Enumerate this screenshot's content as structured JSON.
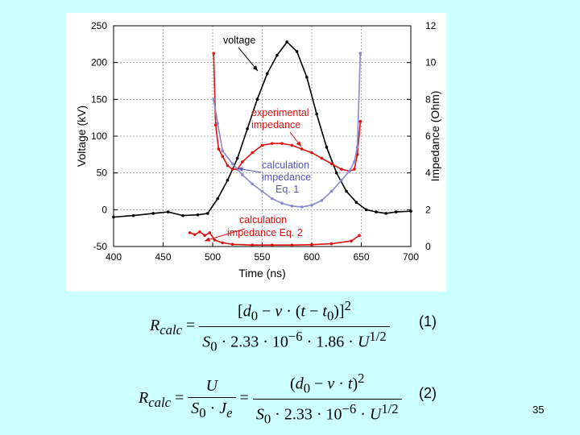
{
  "chart_data": {
    "type": "line",
    "title": "",
    "xlabel": "Time (ns)",
    "ylabel": "Voltage (kV)",
    "ylabel_right": "Impedance (Ohm)",
    "xlim": [
      400,
      700
    ],
    "ylim": [
      -50,
      250
    ],
    "ylim_right": [
      0,
      12
    ],
    "x_ticks": [
      400,
      450,
      500,
      550,
      600,
      650,
      700
    ],
    "y_ticks": [
      -50,
      0,
      50,
      100,
      150,
      200,
      250
    ],
    "y_ticks_right": [
      0,
      2,
      4,
      6,
      8,
      10,
      12
    ],
    "grid": true,
    "series": [
      {
        "name": "voltage",
        "axis": "left",
        "color": "#000000",
        "x": [
          400,
          420,
          440,
          455,
          470,
          485,
          495,
          505,
          515,
          525,
          535,
          545,
          555,
          565,
          575,
          585,
          595,
          605,
          615,
          625,
          635,
          645,
          655,
          665,
          675,
          685,
          700
        ],
        "y": [
          -10,
          -8,
          -5,
          -3,
          -8,
          -7,
          -5,
          15,
          40,
          70,
          110,
          150,
          185,
          210,
          228,
          215,
          180,
          130,
          85,
          50,
          25,
          10,
          0,
          -3,
          -5,
          -3,
          -2
        ]
      },
      {
        "name": "experimental impedance",
        "axis": "right",
        "color": "#dd1111",
        "x": [
          501,
          503,
          506,
          510,
          515,
          520,
          525,
          530,
          540,
          550,
          560,
          570,
          580,
          590,
          600,
          610,
          620,
          630,
          638,
          643,
          646,
          649
        ],
        "y": [
          10.5,
          6.6,
          5.3,
          4.9,
          4.4,
          4.2,
          4.2,
          4.6,
          5.1,
          5.5,
          5.6,
          5.6,
          5.5,
          5.3,
          5.1,
          4.8,
          4.5,
          4.2,
          4.1,
          4.2,
          5.0,
          6.8
        ]
      },
      {
        "name": "calculation impedance Eq. 1",
        "axis": "right",
        "color": "#8888cc",
        "x": [
          501,
          505,
          510,
          520,
          530,
          540,
          550,
          560,
          570,
          580,
          590,
          600,
          610,
          620,
          630,
          638,
          643,
          646,
          649
        ],
        "y": [
          8.0,
          6.7,
          5.2,
          4.5,
          3.9,
          3.4,
          3.0,
          2.6,
          2.35,
          2.2,
          2.15,
          2.25,
          2.5,
          3.0,
          3.6,
          4.1,
          4.6,
          5.4,
          10.5
        ]
      },
      {
        "name": "calculation impedance Eq. 2",
        "axis": "right",
        "color": "#dd1111",
        "x": [
          477,
          482,
          487,
          492,
          497,
          502,
          510,
          520,
          540,
          560,
          580,
          600,
          620,
          640,
          648
        ],
        "y": [
          0.75,
          0.65,
          0.8,
          0.6,
          0.75,
          0.35,
          0.2,
          0.12,
          0.08,
          0.08,
          0.08,
          0.1,
          0.15,
          0.3,
          0.6
        ]
      }
    ],
    "annotations": [
      {
        "text": "voltage",
        "color": "#000000"
      },
      {
        "text": "experimental",
        "color": "#dd1111"
      },
      {
        "text": "impedance",
        "color": "#dd1111"
      },
      {
        "text": "calculation",
        "color": "#5555bb"
      },
      {
        "text": "impedance",
        "color": "#5555bb"
      },
      {
        "text": "Eq. 1",
        "color": "#5555bb"
      },
      {
        "text": "calculation",
        "color": "#dd1111"
      },
      {
        "text": "impedance Eq. 2",
        "color": "#dd1111"
      }
    ]
  },
  "equations": {
    "eq1_label": "(1)",
    "eq2_label": "(2)"
  },
  "page_number": "35"
}
